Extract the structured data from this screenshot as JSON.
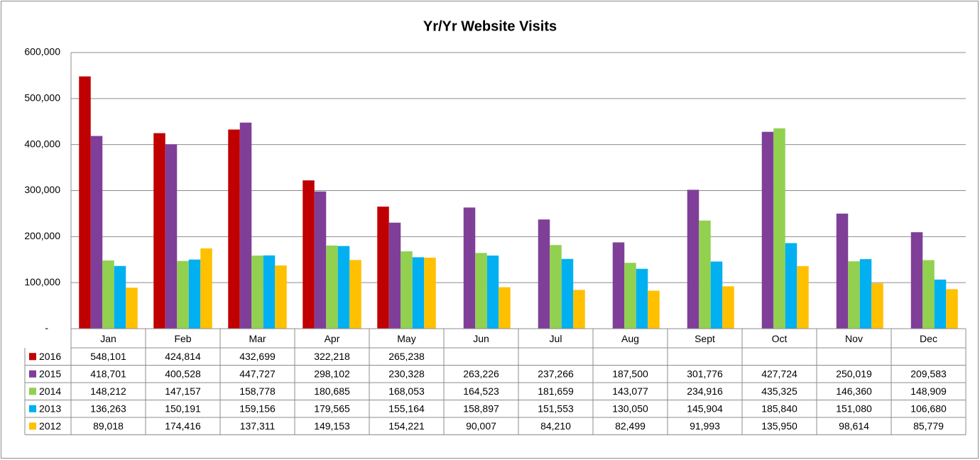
{
  "chart_data": {
    "type": "bar",
    "title": "Yr/Yr Website Visits",
    "categories": [
      "Jan",
      "Feb",
      "Mar",
      "Apr",
      "May",
      "Jun",
      "Jul",
      "Aug",
      "Sept",
      "Oct",
      "Nov",
      "Dec"
    ],
    "series": [
      {
        "name": "2016",
        "color": "#c00000",
        "values": [
          548101,
          424814,
          432699,
          322218,
          265238,
          null,
          null,
          null,
          null,
          null,
          null,
          null
        ],
        "value_labels": [
          "548,101",
          "424,814",
          "432,699",
          "322,218",
          "265,238",
          null,
          null,
          null,
          null,
          null,
          null,
          null
        ]
      },
      {
        "name": "2015",
        "color": "#7f3f98",
        "values": [
          418701,
          400528,
          447727,
          298102,
          230328,
          263226,
          237266,
          187500,
          301776,
          427724,
          250019,
          209583
        ],
        "value_labels": [
          "418,701",
          "400,528",
          "447,727",
          "298,102",
          "230,328",
          "263,226",
          "237,266",
          "187,500",
          "301,776",
          "427,724",
          "250,019",
          "209,583"
        ]
      },
      {
        "name": "2014",
        "color": "#92d050",
        "values": [
          148212,
          147157,
          158778,
          180685,
          168053,
          164523,
          181659,
          143077,
          234916,
          435325,
          146360,
          148909
        ],
        "value_labels": [
          "148,212",
          "147,157",
          "158,778",
          "180,685",
          "168,053",
          "164,523",
          "181,659",
          "143,077",
          "234,916",
          "435,325",
          "146,360",
          "148,909"
        ]
      },
      {
        "name": "2013",
        "color": "#00b0f0",
        "values": [
          136263,
          150191,
          159156,
          179565,
          155164,
          158897,
          151553,
          130050,
          145904,
          185840,
          151080,
          106680
        ],
        "value_labels": [
          "136,263",
          "150,191",
          "159,156",
          "179,565",
          "155,164",
          "158,897",
          "151,553",
          "130,050",
          "145,904",
          "185,840",
          "151,080",
          "106,680"
        ]
      },
      {
        "name": "2012",
        "color": "#ffc000",
        "values": [
          89018,
          174416,
          137311,
          149153,
          154221,
          90007,
          84210,
          82499,
          91993,
          135950,
          98614,
          85779
        ],
        "value_labels": [
          "89,018",
          "174,416",
          "137,311",
          "149,153",
          "154,221",
          "90,007",
          "84,210",
          "82,499",
          "91,993",
          "135,950",
          "98,614",
          "85,779"
        ]
      }
    ],
    "ylim": [
      0,
      600000
    ],
    "yticks": [
      {
        "value": 0,
        "label": "-"
      },
      {
        "value": 100000,
        "label": "100,000"
      },
      {
        "value": 200000,
        "label": "200,000"
      },
      {
        "value": 300000,
        "label": "300,000"
      },
      {
        "value": 400000,
        "label": "400,000"
      },
      {
        "value": 500000,
        "label": "500,000"
      },
      {
        "value": 600000,
        "label": "600,000"
      }
    ],
    "grid": true
  }
}
